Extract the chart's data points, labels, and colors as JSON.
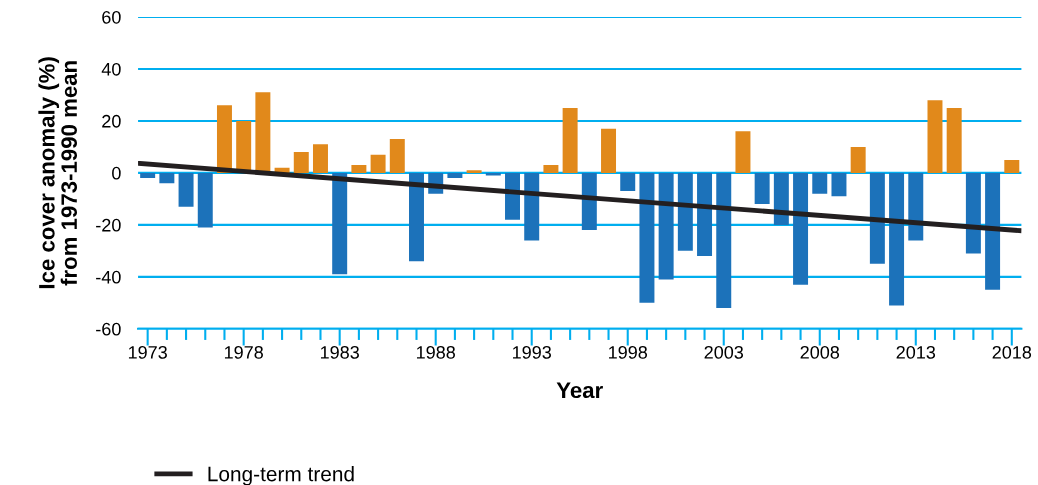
{
  "chart_data": {
    "type": "bar",
    "xlabel": "Year",
    "ylabel": "Ice cover anomaly (%)\nfrom 1973-1990 mean",
    "x": [
      1973,
      1974,
      1975,
      1976,
      1977,
      1978,
      1979,
      1980,
      1981,
      1982,
      1983,
      1984,
      1985,
      1986,
      1987,
      1988,
      1989,
      1990,
      1991,
      1992,
      1993,
      1994,
      1995,
      1996,
      1997,
      1998,
      1999,
      2000,
      2001,
      2002,
      2003,
      2004,
      2005,
      2006,
      2007,
      2008,
      2009,
      2010,
      2011,
      2012,
      2013,
      2014,
      2015,
      2016,
      2017,
      2018
    ],
    "series": [
      {
        "values": [
          -2,
          -4,
          -13,
          -21,
          26,
          20,
          31,
          2,
          8,
          11,
          -39,
          3,
          7,
          13,
          -34,
          -8,
          -2,
          1,
          -1,
          -18,
          -26,
          3,
          25,
          -22,
          17,
          -7,
          -50,
          -41,
          -30,
          -32,
          -52,
          16,
          -12,
          -20,
          -43,
          -8,
          -9,
          10,
          -35,
          -51,
          -26,
          28,
          25,
          -31,
          -45,
          5
        ],
        "colors": [
          "#1c72ba",
          "#1c72ba",
          "#1c72ba",
          "#1c72ba",
          "#e1891b",
          "#e1891b",
          "#e1891b",
          "#e1891b",
          "#e1891b",
          "#e1891b",
          "#1c72ba",
          "#e1891b",
          "#e1891b",
          "#e1891b",
          "#1c72ba",
          "#1c72ba",
          "#1c72ba",
          "#e1891b",
          "#1c72ba",
          "#1c72ba",
          "#1c72ba",
          "#e1891b",
          "#e1891b",
          "#1c72ba",
          "#e1891b",
          "#1c72ba",
          "#1c72ba",
          "#1c72ba",
          "#1c72ba",
          "#1c72ba",
          "#1c72ba",
          "#e1891b",
          "#1c72ba",
          "#1c72ba",
          "#1c72ba",
          "#1c72ba",
          "#1c72ba",
          "#e1891b",
          "#1c72ba",
          "#1c72ba",
          "#1c72ba",
          "#e1891b",
          "#e1891b",
          "#1c72ba",
          "#1c72ba",
          "#e1891b"
        ]
      },
      {
        "type": "line",
        "name": "Long-term trend",
        "color": "#231f20",
        "x": [
          1972.6,
          2018.4
        ],
        "values": [
          3.6,
          -22.2
        ]
      }
    ],
    "xlim": [
      1972.5,
      2018.5
    ],
    "xticks": [
      1973,
      {
        "value": 1974,
        "label": null
      },
      {
        "value": 1975,
        "label": null
      },
      {
        "value": 1976,
        "label": null
      },
      {
        "value": 1977,
        "label": null
      },
      1978,
      {
        "value": 1979,
        "label": null
      },
      {
        "value": 1980,
        "label": null
      },
      {
        "value": 1981,
        "label": null
      },
      {
        "value": 1982,
        "label": null
      },
      1983,
      {
        "value": 1984,
        "label": null
      },
      {
        "value": 1985,
        "label": null
      },
      {
        "value": 1986,
        "label": null
      },
      {
        "value": 1987,
        "label": null
      },
      1988,
      {
        "value": 1989,
        "label": null
      },
      {
        "value": 1990,
        "label": null
      },
      {
        "value": 1991,
        "label": null
      },
      {
        "value": 1992,
        "label": null
      },
      1993,
      {
        "value": 1994,
        "label": null
      },
      {
        "value": 1995,
        "label": null
      },
      {
        "value": 1996,
        "label": null
      },
      {
        "value": 1997,
        "label": null
      },
      1998,
      {
        "value": 1999,
        "label": null
      },
      {
        "value": 2000,
        "label": null
      },
      {
        "value": 2001,
        "label": null
      },
      {
        "value": 2002,
        "label": null
      },
      2003,
      {
        "value": 2004,
        "label": null
      },
      {
        "value": 2005,
        "label": null
      },
      {
        "value": 2006,
        "label": null
      },
      {
        "value": 2007,
        "label": null
      },
      2008,
      {
        "value": 2009,
        "label": null
      },
      {
        "value": 2010,
        "label": null
      },
      {
        "value": 2011,
        "label": null
      },
      {
        "value": 2012,
        "label": null
      },
      2013,
      {
        "value": 2014,
        "label": null
      },
      {
        "value": 2015,
        "label": null
      },
      {
        "value": 2016,
        "label": null
      },
      {
        "value": 2017,
        "label": null
      },
      2018
    ],
    "ylim": [
      -60,
      60
    ],
    "yticks": [
      -60,
      -40,
      -20,
      0,
      20,
      40,
      60
    ],
    "grid": "y",
    "legend": "bottom left"
  }
}
